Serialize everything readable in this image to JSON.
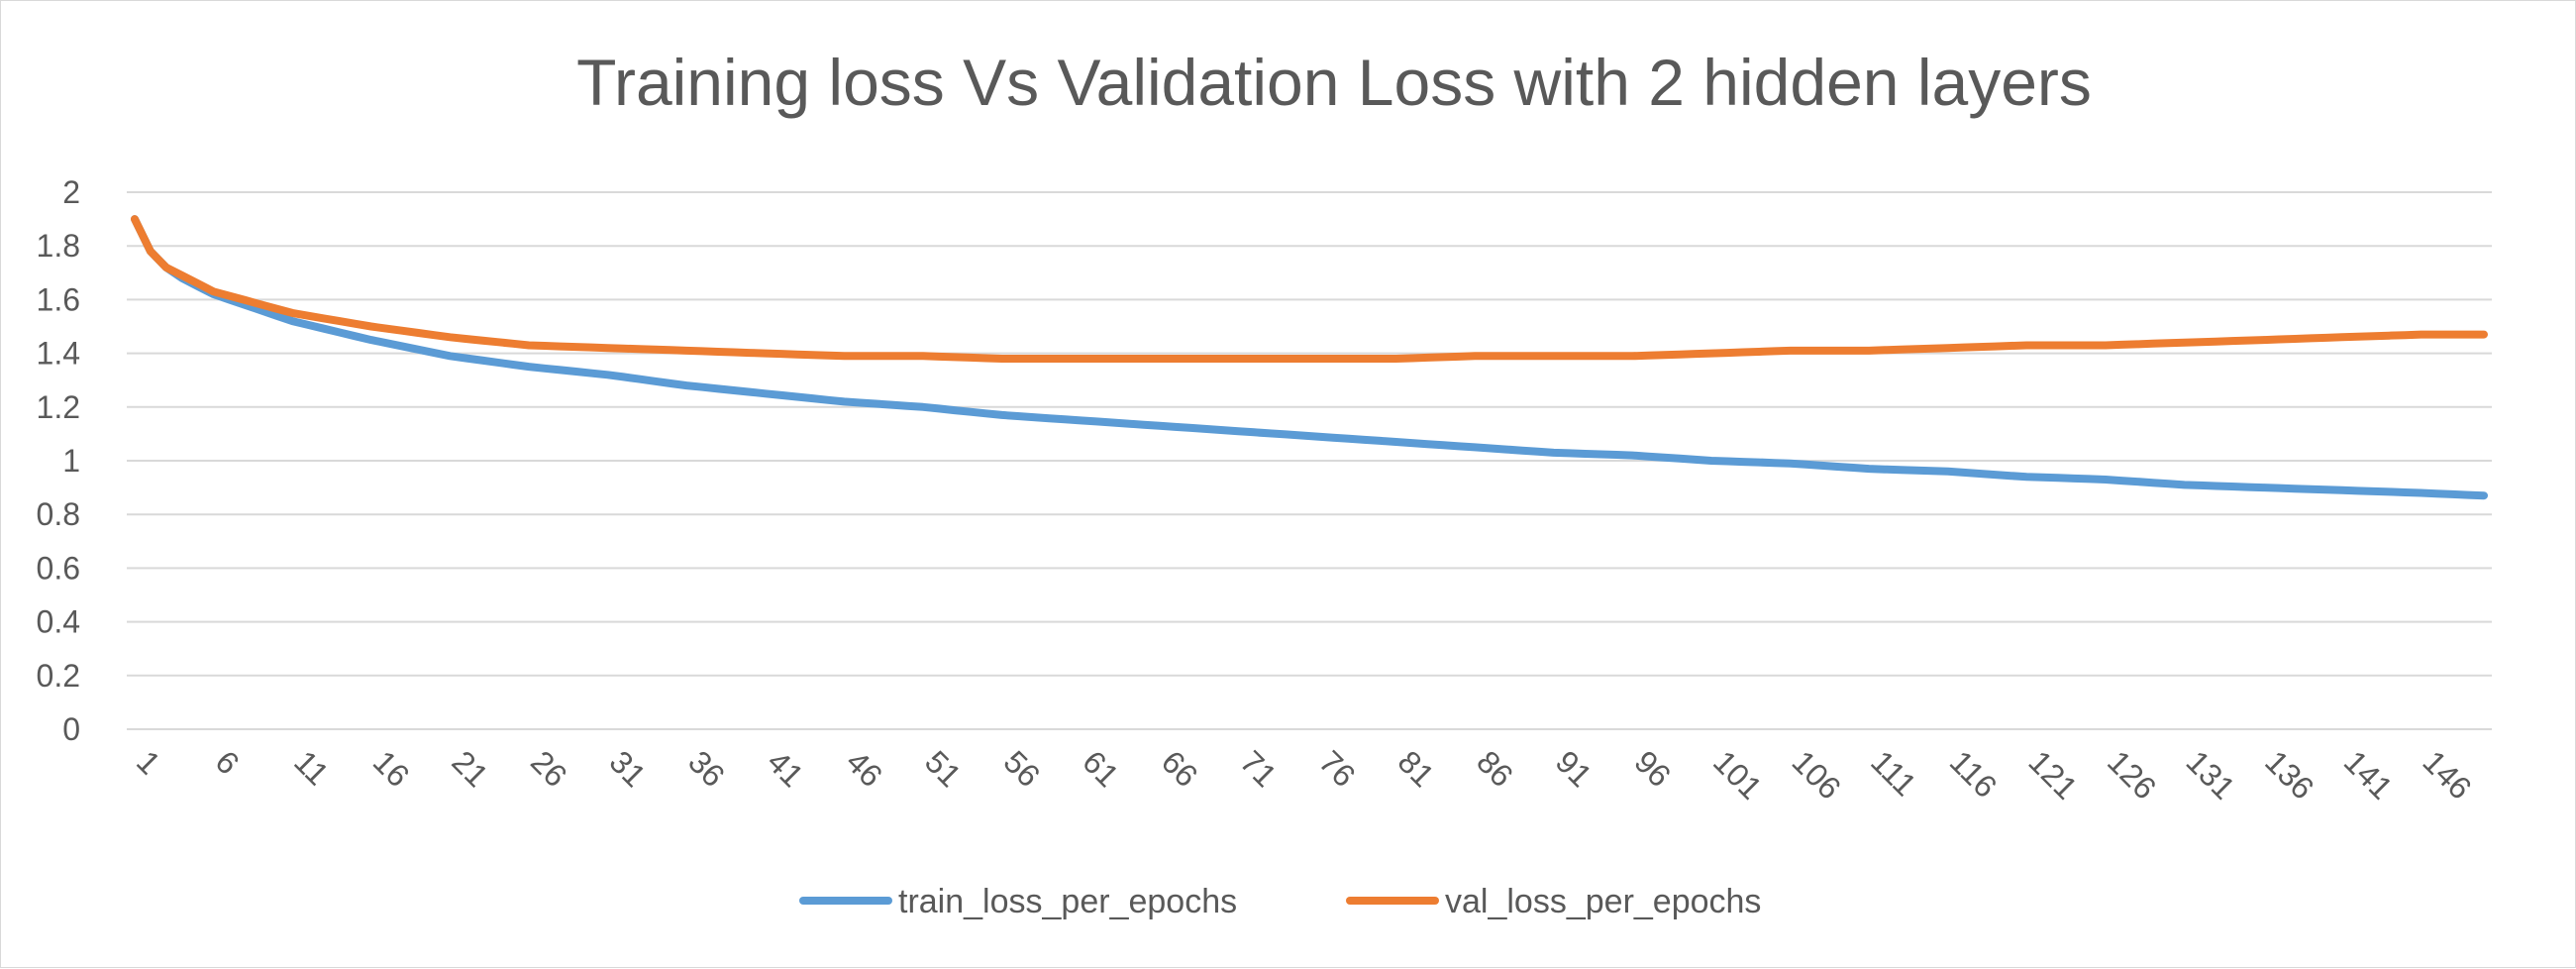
{
  "chart_data": {
    "type": "line",
    "title": "Training loss Vs Validation Loss with 2 hidden layers",
    "xlabel": "",
    "ylabel": "",
    "ylim": [
      0,
      2
    ],
    "y_ticks": [
      "0",
      "0.2",
      "0.4",
      "0.6",
      "0.8",
      "1",
      "1.2",
      "1.4",
      "1.6",
      "1.8",
      "2"
    ],
    "x_start": 1,
    "x_end": 150,
    "x_tick_labels": [
      "1",
      "6",
      "11",
      "16",
      "21",
      "26",
      "31",
      "36",
      "41",
      "46",
      "51",
      "56",
      "61",
      "66",
      "71",
      "76",
      "81",
      "86",
      "91",
      "96",
      "101",
      "106",
      "111",
      "116",
      "121",
      "126",
      "131",
      "136",
      "141",
      "146"
    ],
    "grid": "horizontal",
    "legend_position": "bottom",
    "series": [
      {
        "name": "train_loss_per_epochs",
        "color": "#5b9bd5",
        "points": [
          [
            1,
            1.9
          ],
          [
            2,
            1.78
          ],
          [
            3,
            1.72
          ],
          [
            4,
            1.68
          ],
          [
            6,
            1.62
          ],
          [
            11,
            1.52
          ],
          [
            16,
            1.45
          ],
          [
            21,
            1.39
          ],
          [
            26,
            1.35
          ],
          [
            31,
            1.32
          ],
          [
            36,
            1.28
          ],
          [
            41,
            1.25
          ],
          [
            46,
            1.22
          ],
          [
            51,
            1.2
          ],
          [
            56,
            1.17
          ],
          [
            61,
            1.15
          ],
          [
            66,
            1.13
          ],
          [
            71,
            1.11
          ],
          [
            76,
            1.09
          ],
          [
            81,
            1.07
          ],
          [
            86,
            1.05
          ],
          [
            91,
            1.03
          ],
          [
            96,
            1.02
          ],
          [
            101,
            1.0
          ],
          [
            106,
            0.99
          ],
          [
            111,
            0.97
          ],
          [
            116,
            0.96
          ],
          [
            121,
            0.94
          ],
          [
            126,
            0.93
          ],
          [
            131,
            0.91
          ],
          [
            136,
            0.9
          ],
          [
            141,
            0.89
          ],
          [
            146,
            0.88
          ],
          [
            150,
            0.87
          ]
        ]
      },
      {
        "name": "val_loss_per_epochs",
        "color": "#ed7d31",
        "points": [
          [
            1,
            1.9
          ],
          [
            2,
            1.78
          ],
          [
            3,
            1.72
          ],
          [
            4,
            1.69
          ],
          [
            6,
            1.63
          ],
          [
            11,
            1.55
          ],
          [
            16,
            1.5
          ],
          [
            21,
            1.46
          ],
          [
            26,
            1.43
          ],
          [
            31,
            1.42
          ],
          [
            36,
            1.41
          ],
          [
            41,
            1.4
          ],
          [
            46,
            1.39
          ],
          [
            51,
            1.39
          ],
          [
            56,
            1.38
          ],
          [
            61,
            1.38
          ],
          [
            66,
            1.38
          ],
          [
            71,
            1.38
          ],
          [
            76,
            1.38
          ],
          [
            81,
            1.38
          ],
          [
            86,
            1.39
          ],
          [
            91,
            1.39
          ],
          [
            96,
            1.39
          ],
          [
            101,
            1.4
          ],
          [
            106,
            1.41
          ],
          [
            111,
            1.41
          ],
          [
            116,
            1.42
          ],
          [
            121,
            1.43
          ],
          [
            126,
            1.43
          ],
          [
            131,
            1.44
          ],
          [
            136,
            1.45
          ],
          [
            141,
            1.46
          ],
          [
            146,
            1.47
          ],
          [
            150,
            1.47
          ]
        ]
      }
    ]
  }
}
